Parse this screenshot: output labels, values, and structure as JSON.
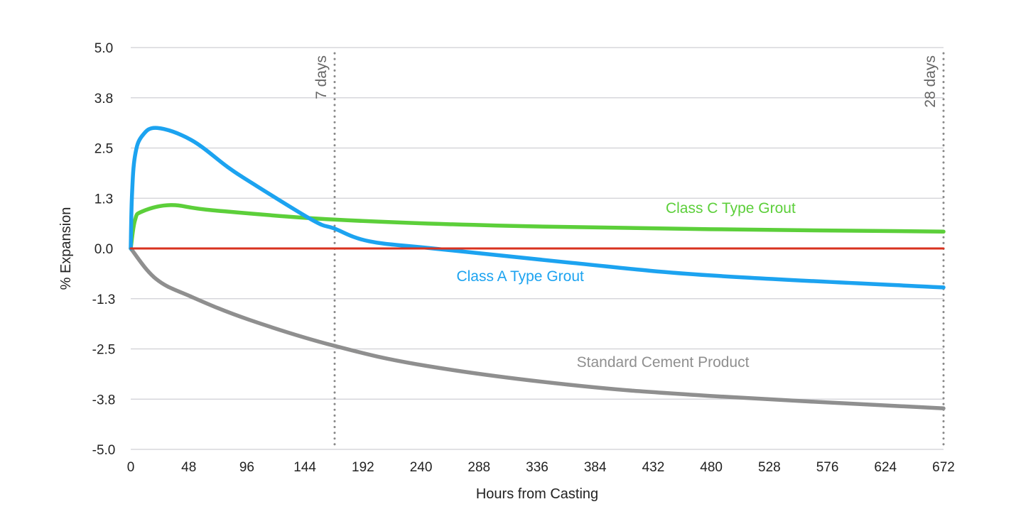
{
  "chart_data": {
    "type": "line",
    "title": "",
    "xlabel": "Hours from Casting",
    "ylabel": "% Expansion",
    "xlim": [
      0,
      672
    ],
    "ylim": [
      -5.0,
      5.0
    ],
    "x_ticks": [
      0,
      48,
      96,
      144,
      192,
      240,
      288,
      336,
      384,
      432,
      480,
      528,
      576,
      624,
      672
    ],
    "y_ticks": [
      5.0,
      3.75,
      2.5,
      1.25,
      0.0,
      -1.25,
      -2.5,
      -3.75,
      -5.0
    ],
    "y_tick_labels": [
      "5.0",
      "3.8",
      "2.5",
      "1.3",
      "0.0",
      "-1.3",
      "-2.5",
      "-3.8",
      "-5.0"
    ],
    "grid": true,
    "legend": "none (inline labels)",
    "markers": [
      {
        "x": 168,
        "label": "7 days"
      },
      {
        "x": 672,
        "label": "28 days"
      }
    ],
    "series": [
      {
        "name": "Class C Type Grout",
        "color": "#5ccf3a",
        "x": [
          0,
          3.5,
          9.4,
          33,
          68,
          168,
          303,
          479,
          672
        ],
        "y": [
          0,
          0.7,
          0.92,
          1.08,
          0.95,
          0.72,
          0.57,
          0.48,
          0.42
        ],
        "label_at": [
          496,
          0.88
        ]
      },
      {
        "name": "Class A Type Grout",
        "color": "#1ca3f0",
        "x": [
          0,
          1,
          3.5,
          9.4,
          22,
          50,
          80,
          97.5,
          150,
          168,
          197,
          250,
          362,
          479,
          672
        ],
        "y": [
          0,
          1.3,
          2.3,
          2.8,
          3.0,
          2.7,
          2.03,
          1.68,
          0.71,
          0.5,
          0.18,
          0.0,
          -0.35,
          -0.67,
          -0.97
        ],
        "label_at": [
          322,
          -0.81
        ]
      },
      {
        "name": "Standard Cement Product",
        "color": "#8f8f8f",
        "x": [
          0,
          21,
          50,
          97.5,
          168,
          244,
          362,
          479,
          672
        ],
        "y": [
          0,
          -0.76,
          -1.2,
          -1.77,
          -2.42,
          -2.92,
          -3.39,
          -3.67,
          -3.98
        ],
        "label_at": [
          440,
          -2.95
        ]
      },
      {
        "color": "#d8321f",
        "x": [
          0,
          672
        ],
        "y": [
          0,
          0
        ]
      }
    ]
  }
}
